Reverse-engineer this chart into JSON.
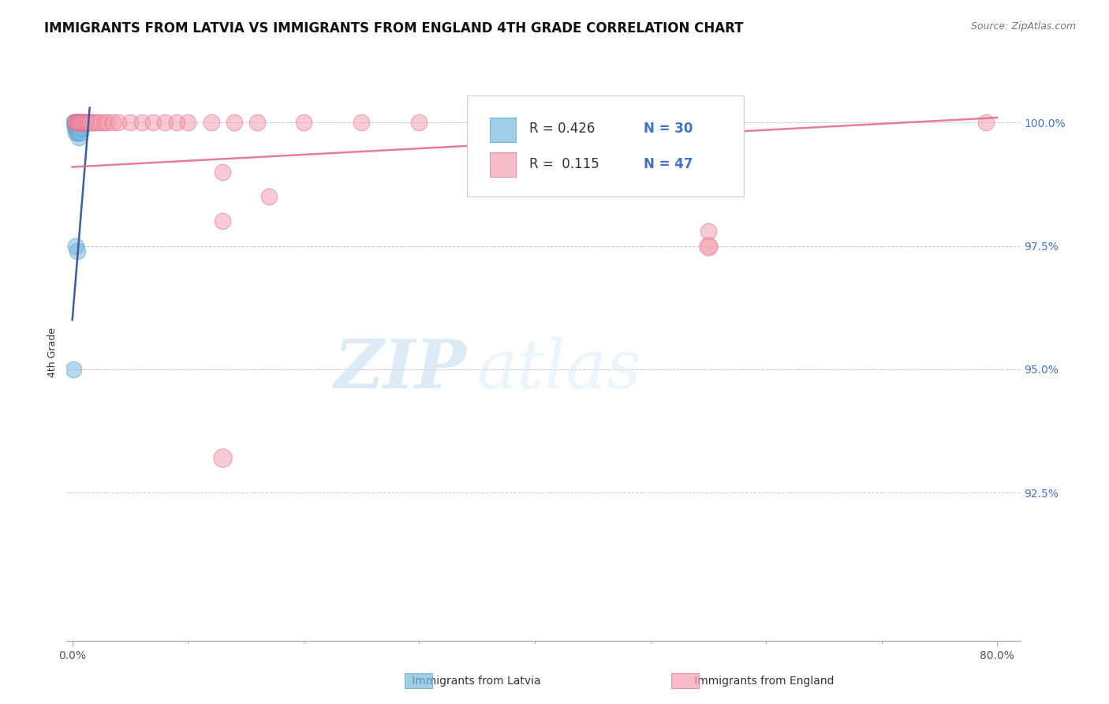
{
  "title": "IMMIGRANTS FROM LATVIA VS IMMIGRANTS FROM ENGLAND 4TH GRADE CORRELATION CHART",
  "source": "Source: ZipAtlas.com",
  "ylabel": "4th Grade",
  "ytick_labels": [
    "100.0%",
    "97.5%",
    "95.0%",
    "92.5%"
  ],
  "ytick_values": [
    1.0,
    0.975,
    0.95,
    0.925
  ],
  "xlim": [
    -0.005,
    0.82
  ],
  "ylim": [
    0.895,
    1.012
  ],
  "background_color": "#ffffff",
  "grid_color": "#cccccc",
  "blue_color": "#7ab8e0",
  "blue_edge": "#5b9dc4",
  "pink_color": "#f4a0b0",
  "pink_edge": "#e07090",
  "blue_line_color": "#3a5fa0",
  "pink_line_color": "#e07090",
  "dot_size": 220,
  "title_fontsize": 12,
  "label_fontsize": 9,
  "tick_fontsize": 10,
  "source_fontsize": 9,
  "latvia_x": [
    0.001,
    0.002,
    0.002,
    0.002,
    0.002,
    0.003,
    0.003,
    0.003,
    0.003,
    0.004,
    0.004,
    0.004,
    0.005,
    0.005,
    0.005,
    0.006,
    0.006,
    0.006,
    0.007,
    0.007,
    0.008,
    0.008,
    0.009,
    0.01,
    0.011,
    0.012,
    0.013,
    0.003,
    0.004,
    0.001
  ],
  "latvia_y": [
    1.0,
    1.0,
    1.0,
    1.0,
    0.999,
    1.0,
    1.0,
    0.999,
    0.998,
    1.0,
    0.999,
    0.998,
    1.0,
    0.999,
    0.998,
    1.0,
    0.999,
    0.997,
    1.0,
    0.998,
    1.0,
    0.999,
    1.0,
    1.0,
    1.0,
    1.0,
    1.0,
    0.975,
    0.974,
    0.95
  ],
  "england_x": [
    0.002,
    0.003,
    0.003,
    0.004,
    0.004,
    0.005,
    0.005,
    0.006,
    0.006,
    0.007,
    0.007,
    0.008,
    0.008,
    0.009,
    0.01,
    0.011,
    0.012,
    0.013,
    0.014,
    0.015,
    0.016,
    0.018,
    0.02,
    0.022,
    0.025,
    0.028,
    0.03,
    0.035,
    0.04,
    0.05,
    0.06,
    0.07,
    0.08,
    0.09,
    0.1,
    0.12,
    0.14,
    0.16,
    0.2,
    0.25,
    0.3,
    0.13,
    0.17,
    0.55,
    0.13,
    0.55,
    0.79
  ],
  "england_y": [
    1.0,
    1.0,
    1.0,
    1.0,
    1.0,
    1.0,
    1.0,
    1.0,
    1.0,
    1.0,
    1.0,
    1.0,
    1.0,
    1.0,
    1.0,
    1.0,
    1.0,
    1.0,
    1.0,
    1.0,
    1.0,
    1.0,
    1.0,
    1.0,
    1.0,
    1.0,
    1.0,
    1.0,
    1.0,
    1.0,
    1.0,
    1.0,
    1.0,
    1.0,
    1.0,
    1.0,
    1.0,
    1.0,
    1.0,
    1.0,
    1.0,
    0.99,
    0.985,
    0.975,
    0.98,
    0.978,
    1.0
  ],
  "england_outlier_x": [
    0.55
  ],
  "england_outlier_y": [
    0.975
  ],
  "england_low_x": [
    0.13
  ],
  "england_low_y": [
    0.932
  ],
  "lv_line_x0": 0.0,
  "lv_line_x1": 0.015,
  "lv_line_y0": 0.96,
  "lv_line_y1": 1.003,
  "en_line_x0": 0.0,
  "en_line_x1": 0.8,
  "en_line_y0": 0.991,
  "en_line_y1": 1.001,
  "legend_R1": "R = 0.426",
  "legend_N1": "N = 30",
  "legend_R2": "R =  0.115",
  "legend_N2": "N = 47",
  "legend_label1": "Immigrants from Latvia",
  "legend_label2": "Immigrants from England",
  "watermark_zip": "ZIP",
  "watermark_atlas": "atlas"
}
